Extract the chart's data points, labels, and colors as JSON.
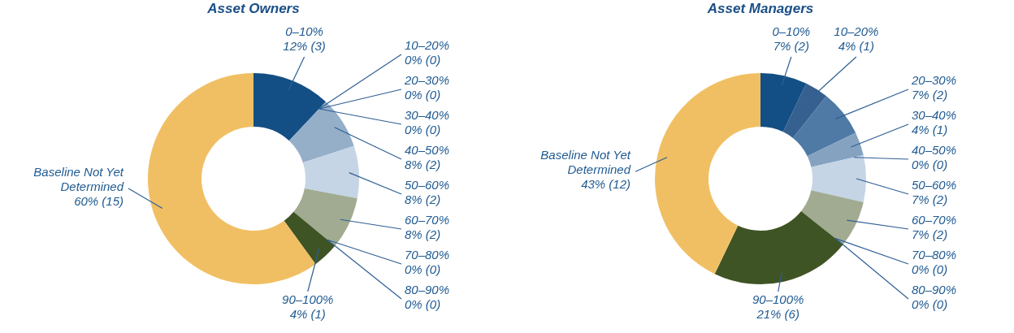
{
  "chart_data": [
    {
      "type": "donut",
      "title": "Asset Owners",
      "categories": [
        "0–10%",
        "10–20%",
        "20–30%",
        "30–40%",
        "40–50%",
        "50–60%",
        "60–70%",
        "70–80%",
        "80–90%",
        "90–100%",
        "Baseline Not Yet Determined"
      ],
      "values": [
        3,
        0,
        0,
        0,
        2,
        2,
        2,
        0,
        0,
        1,
        15
      ],
      "value_labels": [
        "12% (3)",
        "0% (0)",
        "0% (0)",
        "0% (0)",
        "8% (2)",
        "8% (2)",
        "8% (2)",
        "0% (0)",
        "0% (0)",
        "4% (1)",
        "60% (15)"
      ],
      "colors": [
        "#134f85",
        "#36608f",
        "#4f7aa6",
        "#7f9dbf",
        "#95afc9",
        "#c5d5e5",
        "#a1ab91",
        "#6f7d55",
        "#56683a",
        "#3f5424",
        "#f1bf63"
      ]
    },
    {
      "type": "donut",
      "title": "Asset Managers",
      "categories": [
        "0–10%",
        "10–20%",
        "20–30%",
        "30–40%",
        "40–50%",
        "50–60%",
        "60–70%",
        "70–80%",
        "80–90%",
        "90–100%",
        "Baseline Not Yet Determined"
      ],
      "values": [
        2,
        1,
        2,
        1,
        0,
        2,
        2,
        0,
        0,
        6,
        12
      ],
      "value_labels": [
        "7% (2)",
        "4% (1)",
        "7% (2)",
        "4% (1)",
        "0% (0)",
        "7% (2)",
        "7% (2)",
        "0% (0)",
        "0% (0)",
        "21% (6)",
        "43% (12)"
      ],
      "colors": [
        "#134f85",
        "#36608f",
        "#4f7aa6",
        "#85a3c1",
        "#95afc9",
        "#c5d5e5",
        "#a1ab91",
        "#6f7d55",
        "#56683a",
        "#3f5424",
        "#f1bf63"
      ]
    }
  ]
}
